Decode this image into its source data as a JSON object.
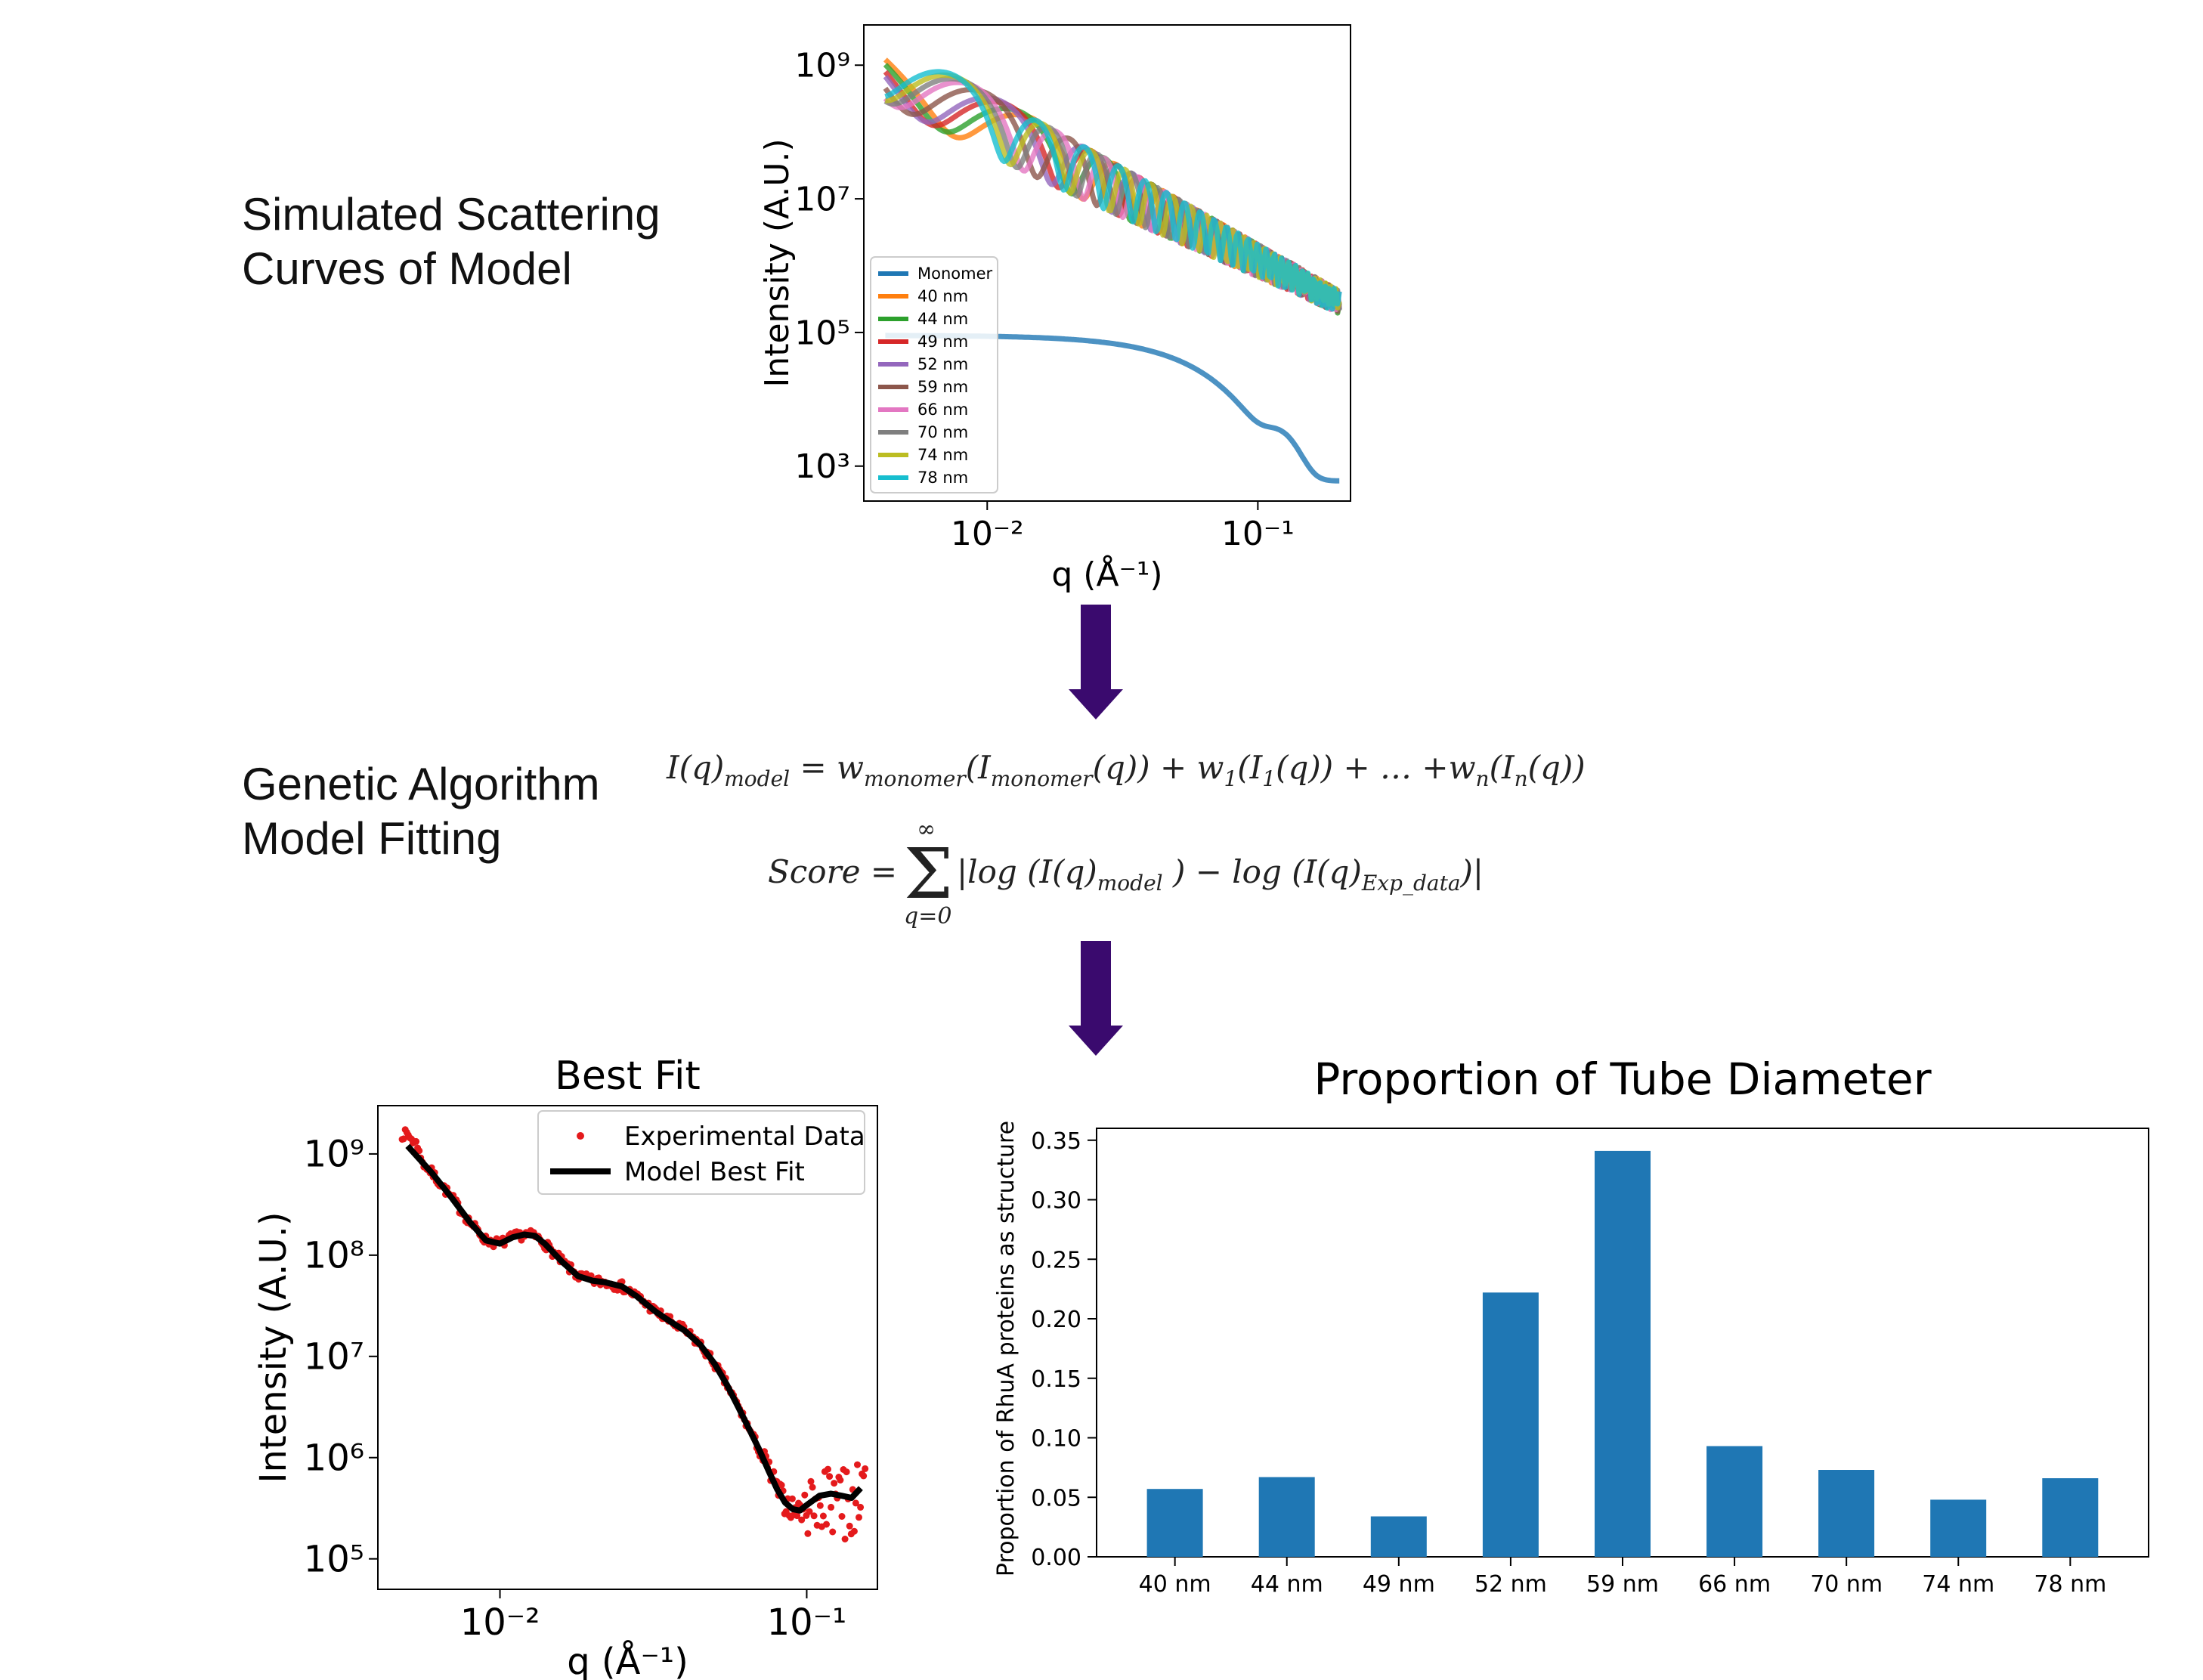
{
  "labels": {
    "simulated": "Simulated Scattering\nCurves of Model",
    "genetic": "Genetic Algorithm\nModel Fitting"
  },
  "equations": {
    "model": "I(q)_model = w_monomer(I_monomer(q)) + w_1(I_1(q)) + … +w_n(I_n(q))",
    "score": "Score = Σ_{q=0}^{∞} |log (I(q)_model) − log (I(q)_Exp_data)|"
  },
  "colors": {
    "arrow": "#3a0a6e",
    "bar": "#1f77b4",
    "exp_points": "#e41a1c",
    "fit_line": "#000000"
  },
  "chart_data": [
    {
      "id": "simulated",
      "type": "line",
      "title": "",
      "xlabel": "q (Å⁻¹)",
      "ylabel": "Intensity (A.U.)",
      "xscale": "log",
      "yscale": "log",
      "xlim": [
        0.0035,
        0.22
      ],
      "ylim": [
        300,
        4000000000
      ],
      "xticks": [
        {
          "value": 0.01,
          "label": "10⁻²"
        },
        {
          "value": 0.1,
          "label": "10⁻¹"
        }
      ],
      "yticks": [
        {
          "value": 1000,
          "label": "10³"
        },
        {
          "value": 100000,
          "label": "10⁵"
        },
        {
          "value": 10000000,
          "label": "10⁷"
        },
        {
          "value": 1000000000,
          "label": "10⁹"
        }
      ],
      "grid": false,
      "legend": "lower-left",
      "series": [
        {
          "name": "Monomer",
          "color": "#1f77b4",
          "diameter_nm": 0
        },
        {
          "name": "40 nm",
          "color": "#ff7f0e",
          "diameter_nm": 40
        },
        {
          "name": "44 nm",
          "color": "#2ca02c",
          "diameter_nm": 44
        },
        {
          "name": "49 nm",
          "color": "#d62728",
          "diameter_nm": 49
        },
        {
          "name": "52 nm",
          "color": "#9467bd",
          "diameter_nm": 52
        },
        {
          "name": "59 nm",
          "color": "#8c564b",
          "diameter_nm": 59
        },
        {
          "name": "66 nm",
          "color": "#e377c2",
          "diameter_nm": 66
        },
        {
          "name": "70 nm",
          "color": "#7f7f7f",
          "diameter_nm": 70
        },
        {
          "name": "74 nm",
          "color": "#bcbd22",
          "diameter_nm": 74
        },
        {
          "name": "78 nm",
          "color": "#17becf",
          "diameter_nm": 78
        }
      ]
    },
    {
      "id": "bestfit",
      "type": "scatter",
      "title": "Best Fit",
      "xlabel": "q (Å⁻¹)",
      "ylabel": "Intensity (A.U.)",
      "xscale": "log",
      "yscale": "log",
      "xlim": [
        0.004,
        0.17
      ],
      "ylim": [
        50000,
        3000000000
      ],
      "xticks": [
        {
          "value": 0.01,
          "label": "10⁻²"
        },
        {
          "value": 0.1,
          "label": "10⁻¹"
        }
      ],
      "yticks": [
        {
          "value": 100000,
          "label": "10⁵"
        },
        {
          "value": 1000000,
          "label": "10⁶"
        },
        {
          "value": 10000000,
          "label": "10⁷"
        },
        {
          "value": 100000000,
          "label": "10⁸"
        },
        {
          "value": 1000000000,
          "label": "10⁹"
        }
      ],
      "grid": false,
      "legend": "upper-right",
      "series": [
        {
          "name": "Experimental Data",
          "color": "#e41a1c"
        },
        {
          "name": "Model Best Fit",
          "color": "#000000"
        }
      ],
      "fit": {
        "x": [
          0.005,
          0.006,
          0.007,
          0.008,
          0.009,
          0.01,
          0.011,
          0.012,
          0.013,
          0.014,
          0.016,
          0.018,
          0.02,
          0.022,
          0.025,
          0.028,
          0.032,
          0.036,
          0.04,
          0.045,
          0.05,
          0.055,
          0.06,
          0.065,
          0.07,
          0.075,
          0.08,
          0.085,
          0.09,
          0.095,
          0.1,
          0.11,
          0.12,
          0.13,
          0.14,
          0.15
        ],
        "y": [
          1200000000.0,
          650000000.0,
          360000000.0,
          210000000.0,
          140000000.0,
          130000000.0,
          150000000.0,
          160000000.0,
          155000000.0,
          130000000.0,
          85000000.0,
          62000000.0,
          56000000.0,
          54000000.0,
          49000000.0,
          39000000.0,
          28000000.0,
          22000000.0,
          18000000.0,
          13000000.0,
          8500000.0,
          5200000.0,
          3100000.0,
          1900000.0,
          1200000.0,
          750000.0,
          490000.0,
          360000.0,
          310000.0,
          300000.0,
          340000.0,
          420000.0,
          440000.0,
          420000.0,
          400000.0,
          500000.0
        ]
      }
    },
    {
      "id": "proportion",
      "type": "bar",
      "title": "Proportion of Tube Diameter",
      "xlabel": "",
      "ylabel": "Proportion of RhuA proteins as structure",
      "categories": [
        "40 nm",
        "44 nm",
        "49 nm",
        "52 nm",
        "59 nm",
        "66 nm",
        "70 nm",
        "74 nm",
        "78 nm"
      ],
      "values": [
        0.057,
        0.067,
        0.034,
        0.222,
        0.341,
        0.093,
        0.073,
        0.048,
        0.066
      ],
      "ylim": [
        0,
        0.36
      ],
      "yticks": [
        {
          "value": 0,
          "label": "0.00"
        },
        {
          "value": 0.05,
          "label": "0.05"
        },
        {
          "value": 0.1,
          "label": "0.10"
        },
        {
          "value": 0.15,
          "label": "0.15"
        },
        {
          "value": 0.2,
          "label": "0.20"
        },
        {
          "value": 0.25,
          "label": "0.25"
        },
        {
          "value": 0.3,
          "label": "0.30"
        },
        {
          "value": 0.35,
          "label": "0.35"
        }
      ],
      "grid": false,
      "legend": "none"
    }
  ]
}
